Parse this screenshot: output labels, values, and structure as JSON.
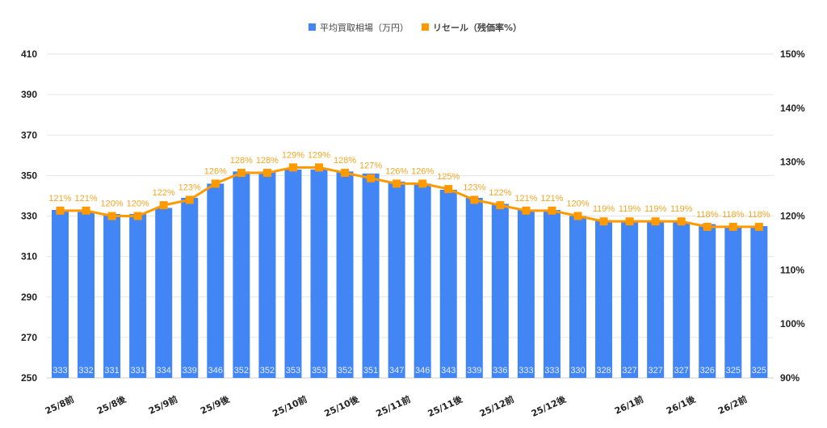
{
  "chart_data": {
    "type": "bar+line",
    "title": "",
    "legend": [
      {
        "name": "平均買取相場（万円）",
        "color": "#4285f4",
        "marker": "square"
      },
      {
        "name": "リセール（残価率%）",
        "color": "#ff9900",
        "marker": "square"
      }
    ],
    "legend_position": "top",
    "x_tick_labels": [
      "25/8前",
      "25/8後",
      "25/9前",
      "25/9後",
      "25/10前",
      "25/10後",
      "25/11前",
      "25/11後",
      "25/12前",
      "25/12後",
      "26/1前",
      "26/1後",
      "26/2前"
    ],
    "x_tick_label_positions": [
      1.5,
      3.5,
      5.5,
      7.5,
      10.5,
      12.5,
      14.5,
      16.5,
      18.5,
      20.5,
      23.5,
      25.5,
      27.5
    ],
    "series": [
      {
        "name": "平均買取相場（万円）",
        "type": "bar",
        "axis": "left",
        "color": "#4285f4",
        "values": [
          333,
          332,
          331,
          331,
          334,
          339,
          346,
          352,
          352,
          353,
          353,
          352,
          351,
          347,
          346,
          343,
          339,
          336,
          333,
          333,
          330,
          328,
          327,
          327,
          327,
          326,
          325,
          325
        ]
      },
      {
        "name": "リセール（残価率%）",
        "type": "line",
        "axis": "right",
        "color": "#ff9900",
        "values": [
          121,
          121,
          120,
          120,
          122,
          123,
          126,
          128,
          128,
          129,
          129,
          128,
          127,
          126,
          126,
          125,
          123,
          122,
          121,
          121,
          120,
          119,
          119,
          119,
          119,
          118,
          118,
          118
        ],
        "labels": [
          "121%",
          "121%",
          "120%",
          "120%",
          "122%",
          "123%",
          "126%",
          "128%",
          "128%",
          "129%",
          "129%",
          "128%",
          "127%",
          "126%",
          "126%",
          "125%",
          "123%",
          "122%",
          "121%",
          "121%",
          "120%",
          "119%",
          "119%",
          "119%",
          "119%",
          "118%",
          "118%",
          "118%"
        ]
      }
    ],
    "y_left": {
      "label": "",
      "min": 250,
      "max": 410,
      "ticks": [
        410,
        390,
        370,
        350,
        330,
        310,
        290,
        270,
        250
      ]
    },
    "y_right": {
      "label": "",
      "min": 90,
      "max": 150,
      "ticks": [
        "150%",
        "140%",
        "130%",
        "120%",
        "110%",
        "100%",
        "90%"
      ]
    },
    "grid": true
  }
}
